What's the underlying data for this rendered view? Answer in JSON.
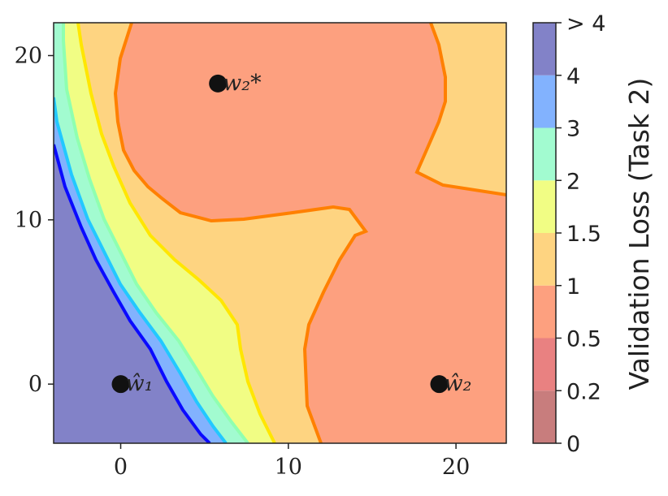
{
  "chart_data": {
    "type": "contour",
    "xlim": [
      -4,
      23
    ],
    "ylim": [
      -3.6,
      22
    ],
    "x_ticks": [
      0,
      10,
      20
    ],
    "y_ticks": [
      0,
      10,
      20
    ],
    "colorbar": {
      "label": "Validation Loss (Task 2)",
      "levels": [
        "0",
        "0.2",
        "0.5",
        "1",
        "1.5",
        "2",
        "3",
        "4",
        "> 4"
      ],
      "bands": [
        {
          "range": "0–0.2",
          "color": "#c87d7d"
        },
        {
          "range": "0.2–0.5",
          "color": "#e98181"
        },
        {
          "range": "0.5–1",
          "color": "#fda07f"
        },
        {
          "range": "1–1.5",
          "color": "#fed481"
        },
        {
          "range": "1.5–2",
          "color": "#f1fd84"
        },
        {
          "range": "2–3",
          "color": "#a2fbd0"
        },
        {
          "range": "3–4",
          "color": "#82b2fe"
        },
        {
          "range": "> 4",
          "color": "#8282c8"
        }
      ]
    },
    "points": [
      {
        "label": "ŵ₁",
        "x": 0,
        "y": 0
      },
      {
        "label": "ŵ₂",
        "x": 19,
        "y": 0
      },
      {
        "label": "w₂*",
        "x": 5.8,
        "y": 18.3
      }
    ]
  }
}
